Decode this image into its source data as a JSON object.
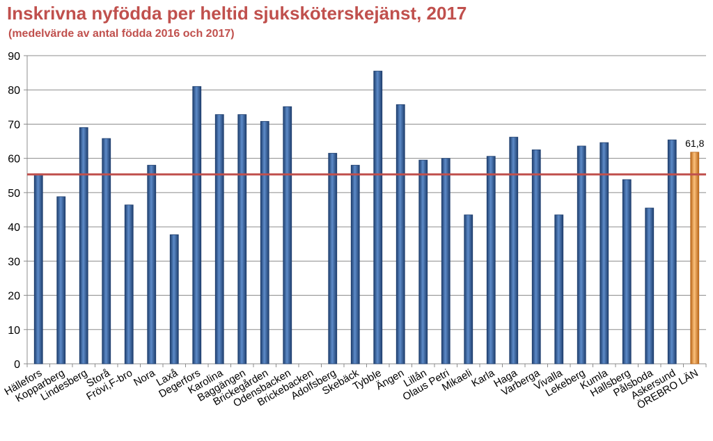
{
  "chart_data": {
    "type": "bar",
    "title": "Inskrivna nyfödda per heltid sjuksköterskejänst, 2017",
    "subtitle": "(medelvärde av antal födda 2016 och 2017)",
    "xlabel": "",
    "ylabel": "",
    "ylim": [
      0,
      90
    ],
    "yticks": [
      0,
      10,
      20,
      30,
      40,
      50,
      60,
      70,
      80,
      90
    ],
    "grid": true,
    "legend": "none",
    "categories": [
      "Hällefors",
      "Kopparberg",
      "Lindesberg",
      "Storå",
      "Frövi,F-bro",
      "Nora",
      "Laxå",
      "Degerfors",
      "Karolina",
      "Baggängen",
      "Brickegården",
      "Odensbacken",
      "Brickebacken",
      "Adolfsberg",
      "Skebäck",
      "Tybble",
      "Ängen",
      "Lillån",
      "Olaus Petri",
      "Mikaeli",
      "Karla",
      "Haga",
      "Varberga",
      "Vivalla",
      "Lekeberg",
      "Kumla",
      "Hallsberg",
      "Pålsboda",
      "Askersund",
      "ÖREBRO LÄN"
    ],
    "values": [
      55.5,
      48.8,
      69.0,
      65.8,
      46.4,
      58.0,
      37.7,
      81.0,
      72.8,
      72.8,
      70.8,
      75.1,
      null,
      61.5,
      58.0,
      85.5,
      75.7,
      59.5,
      60.0,
      43.5,
      60.6,
      66.2,
      62.5,
      43.5,
      63.6,
      64.6,
      53.8,
      45.5,
      65.4,
      61.8
    ],
    "highlight_index": 29,
    "data_labels": [
      {
        "index": 29,
        "text": "61,8"
      }
    ],
    "reference_line": {
      "value": 55.3
    },
    "colors": {
      "bar": "#3a67a8",
      "bar_dark": "#1f3f6e",
      "bar_light": "#5d8bc9",
      "highlight": "#f29a3c",
      "highlight_dark": "#b8661a",
      "highlight_light": "#fbc07a",
      "reference_line": "#c0504d",
      "grid": "#8c8c8c",
      "axis": "#8c8c8c",
      "title": "#c0504d"
    }
  }
}
